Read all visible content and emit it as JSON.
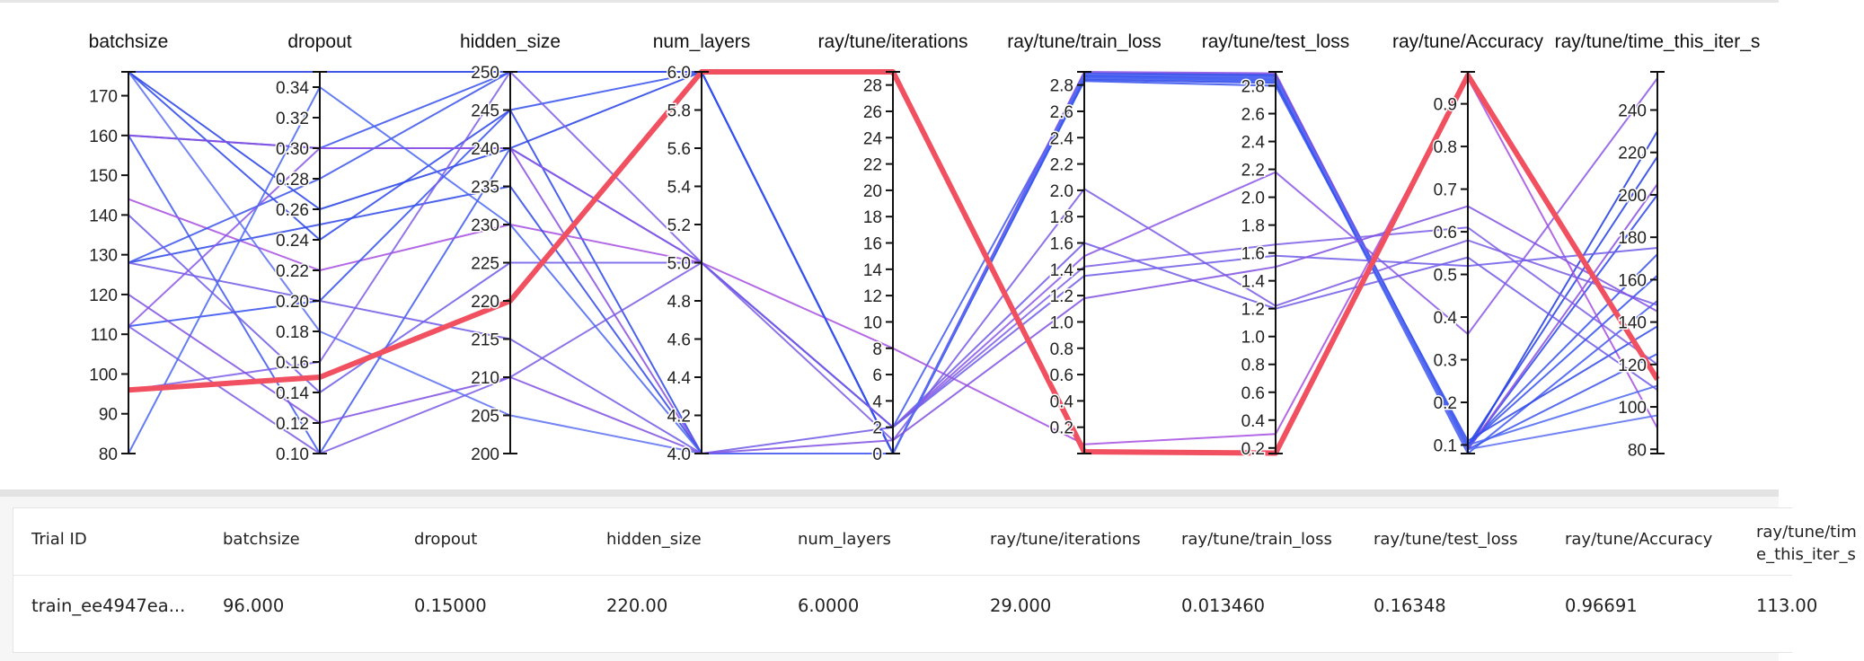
{
  "chart_data": {
    "type": "parallel-coordinates",
    "axes": [
      {
        "name": "batchsize",
        "range": [
          80,
          176
        ],
        "ticks": [
          "80",
          "90",
          "100",
          "110",
          "120",
          "130",
          "140",
          "150",
          "160",
          "170"
        ],
        "tick_values": [
          80,
          90,
          100,
          110,
          120,
          130,
          140,
          150,
          160,
          170
        ]
      },
      {
        "name": "dropout",
        "range": [
          0.1,
          0.35
        ],
        "ticks": [
          "0.10",
          "0.12",
          "0.14",
          "0.16",
          "0.18",
          "0.20",
          "0.22",
          "0.24",
          "0.26",
          "0.28",
          "0.30",
          "0.32",
          "0.34"
        ],
        "tick_values": [
          0.1,
          0.12,
          0.14,
          0.16,
          0.18,
          0.2,
          0.22,
          0.24,
          0.26,
          0.28,
          0.3,
          0.32,
          0.34
        ]
      },
      {
        "name": "hidden_size",
        "range": [
          200,
          250
        ],
        "ticks": [
          "200",
          "205",
          "210",
          "215",
          "220",
          "225",
          "230",
          "235",
          "240",
          "245",
          "250"
        ],
        "tick_values": [
          200,
          205,
          210,
          215,
          220,
          225,
          230,
          235,
          240,
          245,
          250
        ]
      },
      {
        "name": "num_layers",
        "range": [
          4.0,
          6.0
        ],
        "ticks": [
          "4.0",
          "4.2",
          "4.4",
          "4.6",
          "4.8",
          "5.0",
          "5.2",
          "5.4",
          "5.6",
          "5.8",
          "6.0"
        ],
        "tick_values": [
          4.0,
          4.2,
          4.4,
          4.6,
          4.8,
          5.0,
          5.2,
          5.4,
          5.6,
          5.8,
          6.0
        ]
      },
      {
        "name": "ray/tune/iterations",
        "range": [
          0,
          29
        ],
        "ticks": [
          "0",
          "2",
          "4",
          "6",
          "8",
          "10",
          "12",
          "14",
          "16",
          "18",
          "20",
          "22",
          "24",
          "26",
          "28"
        ],
        "tick_values": [
          0,
          2,
          4,
          6,
          8,
          10,
          12,
          14,
          16,
          18,
          20,
          22,
          24,
          26,
          28
        ]
      },
      {
        "name": "ray/tune/train_loss",
        "range": [
          0.0,
          2.9
        ],
        "ticks": [
          "0.2",
          "0.4",
          "0.6",
          "0.8",
          "1.0",
          "1.2",
          "1.4",
          "1.6",
          "1.8",
          "2.0",
          "2.2",
          "2.4",
          "2.6",
          "2.8"
        ],
        "tick_values": [
          0.2,
          0.4,
          0.6,
          0.8,
          1.0,
          1.2,
          1.4,
          1.6,
          1.8,
          2.0,
          2.2,
          2.4,
          2.6,
          2.8
        ]
      },
      {
        "name": "ray/tune/test_loss",
        "range": [
          0.16,
          2.9
        ],
        "ticks": [
          "0.2",
          "0.4",
          "0.6",
          "0.8",
          "1.0",
          "1.2",
          "1.4",
          "1.6",
          "1.8",
          "2.0",
          "2.2",
          "2.4",
          "2.6",
          "2.8"
        ],
        "tick_values": [
          0.2,
          0.4,
          0.6,
          0.8,
          1.0,
          1.2,
          1.4,
          1.6,
          1.8,
          2.0,
          2.2,
          2.4,
          2.6,
          2.8
        ]
      },
      {
        "name": "ray/tune/Accuracy",
        "range": [
          0.08,
          0.975
        ],
        "ticks": [
          "0.1",
          "0.2",
          "0.3",
          "0.4",
          "0.5",
          "0.6",
          "0.7",
          "0.8",
          "0.9"
        ],
        "tick_values": [
          0.1,
          0.2,
          0.3,
          0.4,
          0.5,
          0.6,
          0.7,
          0.8,
          0.9
        ]
      },
      {
        "name": "ray/tune/time_this_iter_s",
        "range": [
          78,
          258
        ],
        "ticks": [
          "80",
          "100",
          "120",
          "140",
          "160",
          "180",
          "200",
          "220",
          "240"
        ],
        "tick_values": [
          80,
          100,
          120,
          140,
          160,
          180,
          200,
          220,
          240
        ]
      }
    ],
    "series": [
      {
        "values": [
          96,
          0.15,
          220,
          6.0,
          29,
          0.01346,
          0.16348,
          0.96691,
          113
        ],
        "highlighted": true,
        "color": "#f0505f"
      },
      {
        "values": [
          176,
          0.35,
          250,
          6.0,
          0,
          2.87,
          2.86,
          0.09,
          230
        ],
        "color": "#1f3be0"
      },
      {
        "values": [
          176,
          0.26,
          240,
          6.0,
          0,
          2.89,
          2.88,
          0.1,
          218
        ],
        "color": "#2440e6"
      },
      {
        "values": [
          176,
          0.24,
          245,
          4.0,
          0,
          2.88,
          2.87,
          0.09,
          200
        ],
        "color": "#2a45ea"
      },
      {
        "values": [
          160,
          0.3,
          250,
          6.0,
          0,
          2.86,
          2.84,
          0.1,
          172
        ],
        "color": "#3550ee"
      },
      {
        "values": [
          160,
          0.1,
          240,
          5.0,
          2,
          2.85,
          2.83,
          0.08,
          150
        ],
        "color": "#3e58f0"
      },
      {
        "values": [
          160,
          0.3,
          240,
          4.0,
          0,
          2.9,
          2.89,
          0.09,
          205
        ],
        "color": "#8a4ee0"
      },
      {
        "values": [
          144,
          0.22,
          230,
          5.0,
          8,
          0.07,
          0.3,
          0.96,
          90
        ],
        "color": "#a64fe0"
      },
      {
        "values": [
          128,
          0.25,
          235,
          4.0,
          0,
          2.84,
          2.82,
          0.11,
          138
        ],
        "color": "#2f48e8"
      },
      {
        "values": [
          128,
          0.28,
          250,
          6.0,
          0,
          2.87,
          2.85,
          0.09,
          125
        ],
        "color": "#3a52ec"
      },
      {
        "values": [
          128,
          0.2,
          215,
          4.0,
          2,
          1.6,
          1.2,
          0.54,
          108
        ],
        "color": "#6f5ae6"
      },
      {
        "values": [
          112,
          0.1,
          210,
          5.0,
          1,
          2.01,
          1.22,
          0.58,
          148
        ],
        "color": "#7a5ae4"
      },
      {
        "values": [
          112,
          0.2,
          245,
          6.0,
          0,
          2.83,
          2.8,
          0.1,
          162
        ],
        "color": "#3450ee"
      },
      {
        "values": [
          112,
          0.3,
          240,
          5.0,
          2,
          1.5,
          2.18,
          0.36,
          255
        ],
        "color": "#8b56e6"
      },
      {
        "values": [
          96,
          0.16,
          250,
          5.0,
          2,
          1.42,
          1.66,
          0.61,
          120
        ],
        "color": "#7c5ee6"
      },
      {
        "values": [
          80,
          0.34,
          230,
          4.0,
          0,
          2.86,
          2.84,
          0.1,
          110
        ],
        "color": "#4a66f2"
      },
      {
        "values": [
          176,
          0.18,
          205,
          4.0,
          0,
          2.88,
          2.86,
          0.09,
          96
        ],
        "color": "#5b6ef2"
      },
      {
        "values": [
          140,
          0.14,
          225,
          5.0,
          2,
          1.35,
          1.58,
          0.52,
          175
        ],
        "color": "#6d5ce8"
      },
      {
        "values": [
          120,
          0.12,
          210,
          4.0,
          1,
          1.18,
          1.5,
          0.66,
          145
        ],
        "color": "#8050e2"
      }
    ]
  },
  "table": {
    "headers": [
      "Trial ID",
      "batchsize",
      "dropout",
      "hidden_size",
      "num_layers",
      "ray/tune/iterations",
      "ray/tune/train_loss",
      "ray/tune/test_loss",
      "ray/tune/Accuracy",
      "ray/tune/time_this_iter_s"
    ],
    "rows": [
      [
        "train_ee4947ea...",
        "96.000",
        "0.15000",
        "220.00",
        "6.0000",
        "29.000",
        "0.013460",
        "0.16348",
        "0.96691",
        "113.00"
      ]
    ]
  }
}
